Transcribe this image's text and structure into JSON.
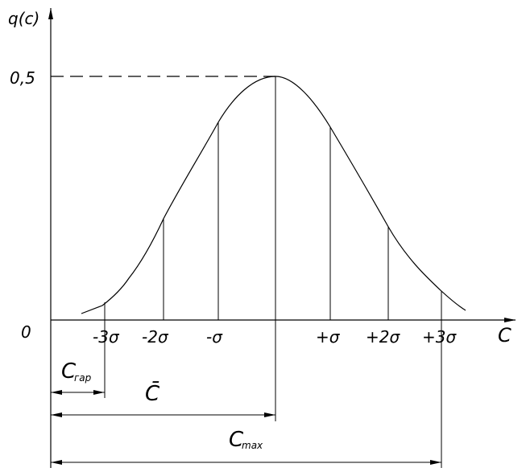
{
  "y_axis_label": "q(c)",
  "x_axis_label": "C",
  "origin_label": "0",
  "peak_label": "0,5",
  "sigma_labels": [
    "-3σ",
    "-2σ",
    "-σ",
    "+σ",
    "+2σ",
    "+3σ"
  ],
  "dimensions": {
    "c_gar": {
      "main": "C",
      "sub": "гар"
    },
    "c_mean": {
      "main": "C̄"
    },
    "c_max": {
      "main": "C",
      "sub": "max"
    }
  }
}
